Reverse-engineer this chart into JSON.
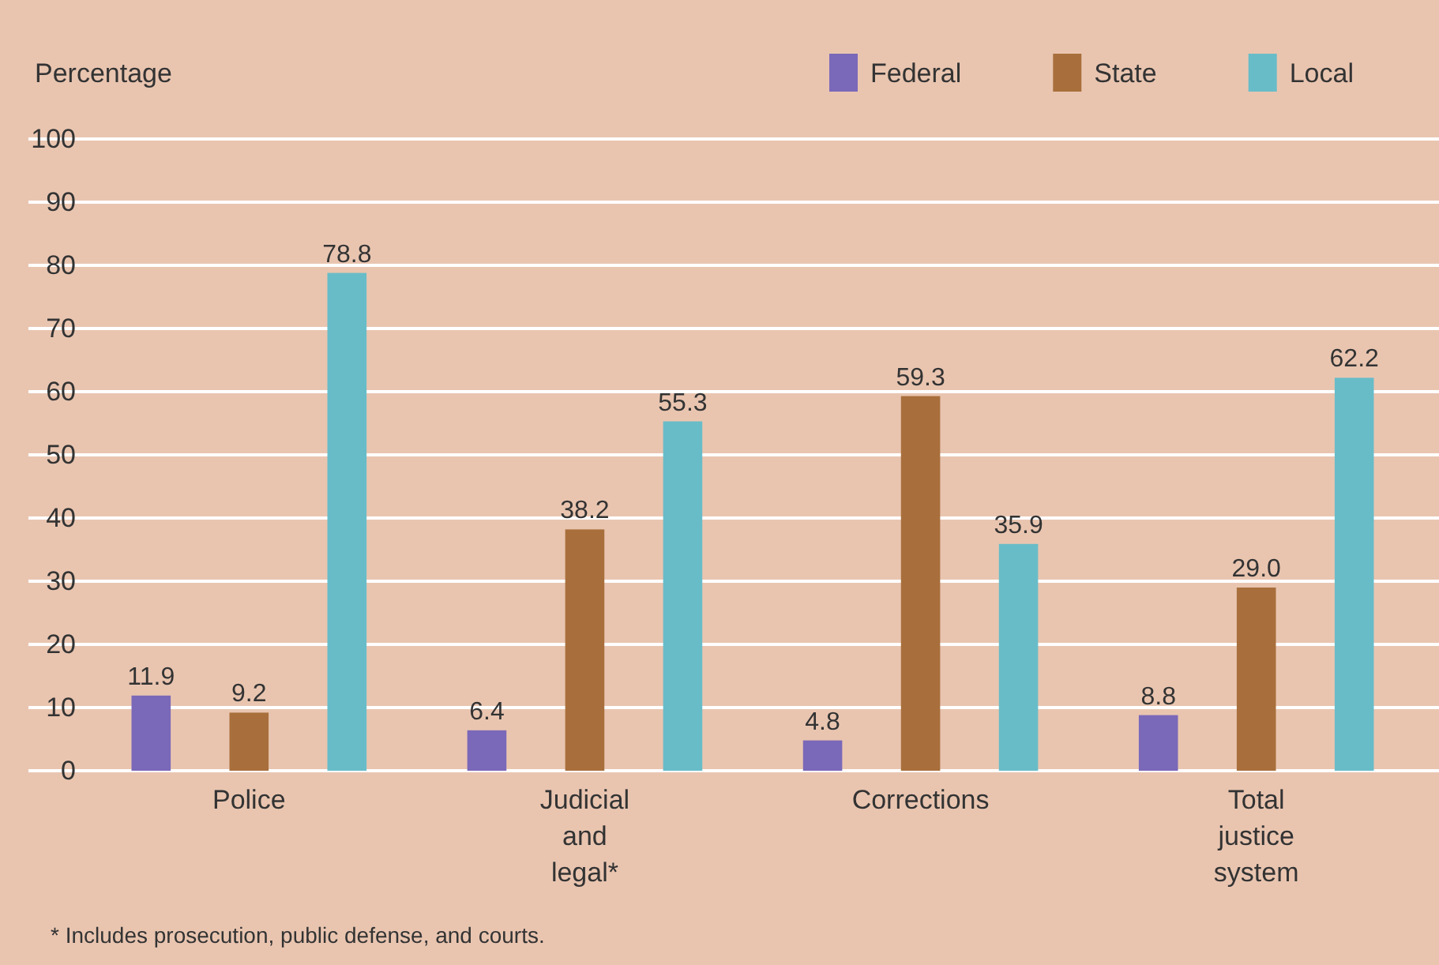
{
  "chart_data": {
    "type": "bar",
    "ylabel": "Percentage",
    "categories": [
      "Police",
      "Judicial and legal*",
      "Corrections",
      "Total justice system"
    ],
    "series": [
      {
        "name": "Federal",
        "color": "#7a68b8",
        "values": [
          11.9,
          6.4,
          4.8,
          8.8
        ],
        "value_labels": [
          "11.9",
          "6.4",
          "4.8",
          "8.8"
        ]
      },
      {
        "name": "State",
        "color": "#a86f3c",
        "values": [
          9.2,
          38.2,
          59.3,
          29.0
        ],
        "value_labels": [
          "9.2",
          "38.2",
          "59.3",
          "29.0"
        ]
      },
      {
        "name": "Local",
        "color": "#68bcc8",
        "values": [
          78.8,
          55.3,
          35.9,
          62.2
        ],
        "value_labels": [
          "78.8",
          "55.3",
          "35.9",
          "62.2"
        ]
      }
    ],
    "ylim": [
      0,
      100
    ],
    "yticks": [
      0,
      10,
      20,
      30,
      40,
      50,
      60,
      70,
      80,
      90,
      100
    ],
    "grid": "y",
    "legend": "top right",
    "annotations": [
      "* Includes prosecution, public defense, and courts."
    ]
  }
}
